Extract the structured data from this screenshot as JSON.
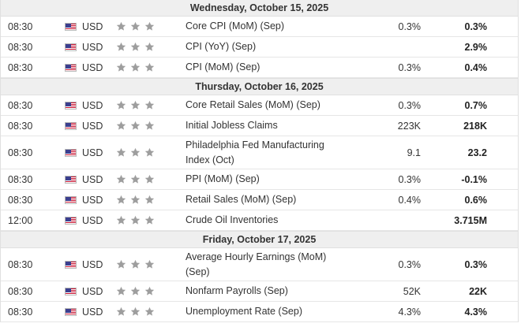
{
  "days": [
    {
      "date": "Wednesday, October 15, 2025",
      "events": [
        {
          "time": "08:30",
          "currency": "USD",
          "flag_icon": "us-flag-icon",
          "stars": 3,
          "event": "Core CPI (MoM) (Sep)",
          "forecast": "0.3%",
          "previous": "0.3%"
        },
        {
          "time": "08:30",
          "currency": "USD",
          "flag_icon": "us-flag-icon",
          "stars": 3,
          "event": "CPI (YoY) (Sep)",
          "forecast": "",
          "previous": "2.9%"
        },
        {
          "time": "08:30",
          "currency": "USD",
          "flag_icon": "us-flag-icon",
          "stars": 3,
          "event": "CPI (MoM) (Sep)",
          "forecast": "0.3%",
          "previous": "0.4%"
        }
      ]
    },
    {
      "date": "Thursday, October 16, 2025",
      "events": [
        {
          "time": "08:30",
          "currency": "USD",
          "flag_icon": "us-flag-icon",
          "stars": 3,
          "event": "Core Retail Sales (MoM) (Sep)",
          "forecast": "0.3%",
          "previous": "0.7%"
        },
        {
          "time": "08:30",
          "currency": "USD",
          "flag_icon": "us-flag-icon",
          "stars": 3,
          "event": "Initial Jobless Claims",
          "forecast": "223K",
          "previous": "218K"
        },
        {
          "time": "08:30",
          "currency": "USD",
          "flag_icon": "us-flag-icon",
          "stars": 3,
          "event": "Philadelphia Fed Manufacturing Index (Oct)",
          "forecast": "9.1",
          "previous": "23.2"
        },
        {
          "time": "08:30",
          "currency": "USD",
          "flag_icon": "us-flag-icon",
          "stars": 3,
          "event": "PPI (MoM) (Sep)",
          "forecast": "0.3%",
          "previous": "-0.1%"
        },
        {
          "time": "08:30",
          "currency": "USD",
          "flag_icon": "us-flag-icon",
          "stars": 3,
          "event": "Retail Sales (MoM) (Sep)",
          "forecast": "0.4%",
          "previous": "0.6%"
        },
        {
          "time": "12:00",
          "currency": "USD",
          "flag_icon": "us-flag-icon",
          "stars": 3,
          "event": "Crude Oil Inventories",
          "forecast": "",
          "previous": "3.715M"
        }
      ]
    },
    {
      "date": "Friday, October 17, 2025",
      "events": [
        {
          "time": "08:30",
          "currency": "USD",
          "flag_icon": "us-flag-icon",
          "stars": 3,
          "event": "Average Hourly Earnings (MoM) (Sep)",
          "forecast": "0.3%",
          "previous": "0.3%"
        },
        {
          "time": "08:30",
          "currency": "USD",
          "flag_icon": "us-flag-icon",
          "stars": 3,
          "event": "Nonfarm Payrolls (Sep)",
          "forecast": "52K",
          "previous": "22K"
        },
        {
          "time": "08:30",
          "currency": "USD",
          "flag_icon": "us-flag-icon",
          "stars": 3,
          "event": "Unemployment Rate (Sep)",
          "forecast": "4.3%",
          "previous": "4.3%"
        }
      ]
    }
  ],
  "colors": {
    "header_bg": "#efefef",
    "star": "#9e9e9e",
    "row_border": "#e6e6e6"
  }
}
